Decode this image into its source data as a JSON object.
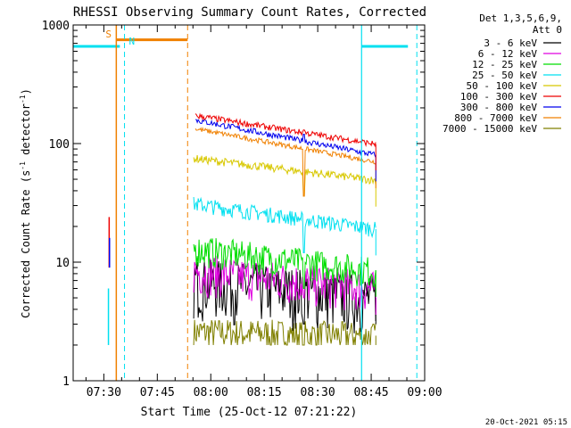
{
  "chart_data": {
    "type": "line",
    "title": "RHESSI Observing Summary Count Rates, Corrected",
    "xlabel": "Start Time (25-Oct-12 07:21:22)",
    "ylabel": "Corrected Count Rate (s-1 detector-1)",
    "ylabel_parts": {
      "pre": "Corrected Count Rate (s",
      "sup1": "-1",
      "mid": " detector",
      "sup2": "-1",
      "post": ")"
    },
    "yscale": "log",
    "ylim": [
      1,
      1000
    ],
    "xlim_minutes": [
      21.4,
      120
    ],
    "x_ticks": [
      {
        "label": "07:30",
        "minute": 30
      },
      {
        "label": "07:45",
        "minute": 45
      },
      {
        "label": "08:00",
        "minute": 60
      },
      {
        "label": "08:15",
        "minute": 75
      },
      {
        "label": "08:30",
        "minute": 90
      },
      {
        "label": "08:45",
        "minute": 105
      },
      {
        "label": "09:00",
        "minute": 120
      }
    ],
    "y_ticks": [
      {
        "label": "1",
        "value": 1
      },
      {
        "label": "10",
        "value": 10
      },
      {
        "label": "100",
        "value": 100
      },
      {
        "label": "1000",
        "value": 1000
      }
    ],
    "legend_header": [
      "Det 1,3,5,6,9,",
      "Att 0"
    ],
    "series": [
      {
        "name": "3 - 6 keV",
        "color": "#000000",
        "t0": 55.2,
        "t1": 106.3,
        "v0": 7.0,
        "v1": 5.0,
        "noise": 0.55,
        "dip_at": 86,
        "dip_val": 3.0
      },
      {
        "name": "6 - 12 keV",
        "color": "#e000e0",
        "t0": 55.2,
        "t1": 106.3,
        "v0": 8.5,
        "v1": 6.0,
        "noise": 0.4,
        "dip_at": 86,
        "dip_val": 5.0
      },
      {
        "name": "12 - 25 keV",
        "color": "#00dd00",
        "t0": 55.2,
        "t1": 106.3,
        "v0": 13.0,
        "v1": 8.5,
        "noise": 0.3,
        "dip_at": 86,
        "dip_val": 6.0
      },
      {
        "name": "25 - 50 keV",
        "color": "#00e0f0",
        "t0": 55.2,
        "t1": 106.3,
        "v0": 31.0,
        "v1": 19.0,
        "noise": 0.15,
        "dip_at": 86,
        "dip_val": 12.0
      },
      {
        "name": "50 - 100 keV",
        "color": "#d8c800",
        "t0": 55.2,
        "t1": 106.3,
        "v0": 75.0,
        "v1": 49.0,
        "noise": 0.08,
        "dip_at": 86,
        "dip_val": 36.0
      },
      {
        "name": "100 - 300 keV",
        "color": "#ee0000",
        "t0": 55.7,
        "t1": 106.3,
        "v0": 172.0,
        "v1": 99.0,
        "noise": 0.06,
        "dip_at": 86,
        "dip_val": 130.0
      },
      {
        "name": "300 - 800 keV",
        "color": "#0000ee",
        "t0": 55.7,
        "t1": 106.3,
        "v0": 158.0,
        "v1": 80.0,
        "noise": 0.06,
        "dip_at": 86,
        "dip_val": 120.0
      },
      {
        "name": "800 - 7000 keV",
        "color": "#f08000",
        "t0": 55.7,
        "t1": 106.3,
        "v0": 133.0,
        "v1": 70.0,
        "noise": 0.05,
        "dip_at": 86,
        "dip_val": 36.0
      },
      {
        "name": "7000 - 15000 keV",
        "color": "#808000",
        "t0": 55.2,
        "t1": 106.3,
        "v0": 2.6,
        "v1": 2.4,
        "noise": 0.3,
        "dip_at": 86,
        "dip_val": 2.0
      }
    ],
    "annotations": {
      "saa_label": "S",
      "night_label": "N",
      "saa_color": "#f08000",
      "night_color": "#00e0f0",
      "saa_level": 750,
      "night_level": 660,
      "saa_start_min": 33.5,
      "saa_end_min": 53.5,
      "night_segments": [
        [
          21.4,
          34.5
        ],
        [
          102.3,
          115.3
        ]
      ],
      "night_dashed_min": [
        35.8,
        117.8
      ],
      "night_solid_min": [
        102.3
      ],
      "saa_solid_min": [
        33.5
      ],
      "saa_dashed_min": [
        53.5
      ]
    },
    "early_spikes": [
      {
        "color": "#ee0000",
        "minute": 31.5,
        "vmin": 9,
        "vmax": 24
      },
      {
        "color": "#0000ee",
        "minute": 31.6,
        "vmin": 9,
        "vmax": 16
      },
      {
        "color": "#00e0f0",
        "minute": 31.3,
        "vmin": 2,
        "vmax": 6
      }
    ]
  },
  "footer": {
    "date_stamp": "20-Oct-2021 05:15"
  }
}
